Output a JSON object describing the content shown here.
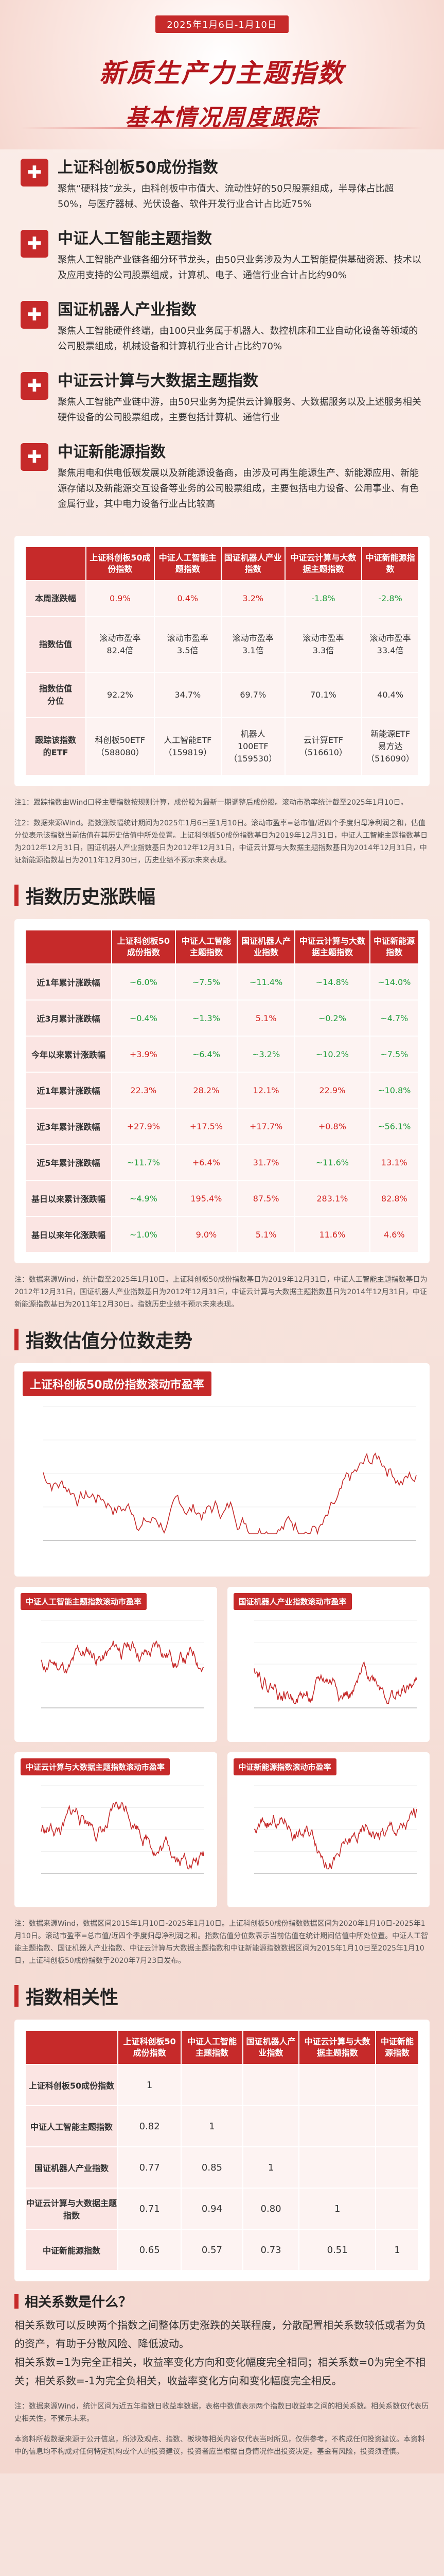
{
  "header": {
    "date": "2025年1月6日-1月10日",
    "title": "新质生产力主题指数",
    "subtitle": "基本情况周度跟踪"
  },
  "intro": [
    {
      "icon": "✚",
      "title": "上证科创板50成份指数",
      "desc": "聚焦“硬科技”龙头，由科创板中市值大、流动性好的50只股票组成，半导体占比超50%，与医疗器械、光伏设备、软件开发行业合计占比近75%"
    },
    {
      "icon": "✚",
      "title": "中证人工智能主题指数",
      "desc": "聚焦人工智能产业链各细分环节龙头，由50只业务涉及为人工智能提供基础资源、技术以及应用支持的公司股票组成，计算机、电子、通信行业合计占比约90%"
    },
    {
      "icon": "✚",
      "title": "国证机器人产业指数",
      "desc": "聚焦人工智能硬件终端，由100只业务属于机器人、数控机床和工业自动化设备等领域的公司股票组成，机械设备和计算机行业合计占比约70%"
    },
    {
      "icon": "✚",
      "title": "中证云计算与大数据主题指数",
      "desc": "聚焦人工智能产业链中游，由50只业务为提供云计算服务、大数据服务以及上述服务相关硬件设备的公司股票组成，主要包括计算机、通信行业"
    },
    {
      "icon": "✚",
      "title": "中证新能源指数",
      "desc": "聚焦用电和供电低碳发展以及新能源设备商，由涉及可再生能源生产、新能源应用、新能源存储以及新能源交互设备等业务的公司股票组成，主要包括电力设备、公用事业、有色金属行业，其中电力设备行业占比较高"
    }
  ],
  "summary": {
    "headers": [
      "",
      "上证科创板50成份指数",
      "中证人工智能主题指数",
      "国证机器人产业指数",
      "中证云计算与大数据主题指数",
      "中证新能源指数"
    ],
    "rows": [
      {
        "label": "本周涨跌幅",
        "cells": [
          "0.9%",
          "0.4%",
          "3.2%",
          "-1.8%",
          "-2.8%"
        ],
        "colors": [
          "red",
          "red",
          "red",
          "green",
          "green"
        ]
      },
      {
        "label": "指数估值",
        "cells": [
          "滚动市盈率\n82.4倍",
          "滚动市盈率\n3.5倍",
          "滚动市盈率\n3.1倍",
          "滚动市盈率\n3.3倍",
          "滚动市盈率\n33.4倍"
        ],
        "colors": [
          "",
          "",
          "",
          "",
          ""
        ]
      },
      {
        "label": "指数估值\n分位",
        "cells": [
          "92.2%",
          "34.7%",
          "69.7%",
          "70.1%",
          "40.4%"
        ],
        "colors": [
          "",
          "",
          "",
          "",
          ""
        ]
      },
      {
        "label": "跟踪该指数\n的ETF",
        "cells": [
          "科创板50ETF\n（588080）",
          "人工智能ETF\n（159819）",
          "机器人\n100ETF\n（159530）",
          "云计算ETF\n（516610）",
          "新能源ETF\n易方达\n（516090）"
        ],
        "colors": [
          "",
          "",
          "",
          "",
          ""
        ]
      }
    ]
  },
  "note1": "注1：跟踪指数由Wind口径主要指数按规则计算，成份股为最新一期调整后成份股。滚动市盈率统计截至2025年1月10日。",
  "note2": "注2：数据来源Wind。指数涨跌幅统计期间为2025年1月6日至1月10日。滚动市盈率=总市值/近四个季度归母净利润之和，估值分位表示该指数当前估值在其历史估值中所处位置。上证科创板50成份指数基日为2019年12月31日，中证人工智能主题指数基日为2012年12月31日，国证机器人产业指数基日为2012年12月31日，中证云计算与大数据主题指数基日为2014年12月31日，中证新能源指数基日为2011年12月30日，历史业绩不预示未来表现。",
  "history_section": {
    "title": "指数历史涨跌幅"
  },
  "history": {
    "headers": [
      "",
      "上证科创板50成份指数",
      "中证人工智能主题指数",
      "国证机器人产业指数",
      "中证云计算与大数据主题指数",
      "中证新能源指数"
    ],
    "rows": [
      {
        "label": "近1年累计涨跌幅",
        "cells": [
          "~6.0%",
          "~7.5%",
          "~11.4%",
          "~14.8%",
          "~14.0%"
        ]
      },
      {
        "label": "近3月累计涨跌幅",
        "cells": [
          "~0.4%",
          "~1.3%",
          "5.1%",
          "~0.2%",
          "~4.7%"
        ]
      },
      {
        "label": "今年以来累计涨跌幅",
        "cells": [
          "+3.9%",
          "~6.4%",
          "~3.2%",
          "~10.2%",
          "~7.5%"
        ]
      },
      {
        "label": "近1年累计涨跌幅",
        "cells": [
          "22.3%",
          "28.2%",
          "12.1%",
          "22.9%",
          "~10.8%"
        ]
      },
      {
        "label": "近3年累计涨跌幅",
        "cells": [
          "+27.9%",
          "+17.5%",
          "+17.7%",
          "+0.8%",
          "~56.1%"
        ]
      },
      {
        "label": "近5年累计涨跌幅",
        "cells": [
          "~11.7%",
          "+6.4%",
          "31.7%",
          "~11.6%",
          "13.1%"
        ]
      },
      {
        "label": "基日以来累计涨跌幅",
        "cells": [
          "~4.9%",
          "195.4%",
          "87.5%",
          "283.1%",
          "82.8%"
        ]
      },
      {
        "label": "基日以来年化涨跌幅",
        "cells": [
          "~1.0%",
          "9.0%",
          "5.1%",
          "11.6%",
          "4.6%"
        ]
      }
    ]
  },
  "note3": "注：数据来源Wind，统计截至2025年1月10日。上证科创板50成份指数基日为2019年12月31日，中证人工智能主题指数基日为2012年12月31日，国证机器人产业指数基日为2012年12月31日，中证云计算与大数据主题指数基日为2014年12月31日，中证新能源指数基日为2011年12月30日。指数历史业绩不预示未来表现。",
  "valuation_section": {
    "title": "指数估值分位数走势"
  },
  "chart_big": {
    "title": "上证科创板50成份指数滚动市盈率"
  },
  "charts_small": [
    {
      "title": "中证人工智能主题指数滚动市盈率"
    },
    {
      "title": "国证机器人产业指数滚动市盈率"
    },
    {
      "title": "中证云计算与大数据主题指数滚动市盈率"
    },
    {
      "title": "中证新能源指数滚动市盈率"
    }
  ],
  "note4": "注：数据来源Wind，数据区间2015年1月10日-2025年1月10日。上证科创板50成份指数数据区间为2020年1月10日-2025年1月10日。滚动市盈率=总市值/近四个季度归母净利润之和。指数估值分位数表示当前估值在统计期间估值中所处位置。中证人工智能主题指数、国证机器人产业指数、中证云计算与大数据主题指数和中证新能源指数数据区间为2015年1月10日至2025年1月10日，上证科创板50成份指数于2020年7月23日发布。",
  "corr_section": {
    "title": "指数相关性"
  },
  "correlation": {
    "headers": [
      "",
      "上证科创板50成份指数",
      "中证人工智能主题指数",
      "国证机器人产业指数",
      "中证云计算与大数据主题指数",
      "中证新能源指数"
    ],
    "rows": [
      {
        "label": "上证科创板50成份指数",
        "cells": [
          "1",
          "",
          "",
          "",
          ""
        ]
      },
      {
        "label": "中证人工智能主题指数",
        "cells": [
          "0.82",
          "1",
          "",
          "",
          ""
        ]
      },
      {
        "label": "国证机器人产业指数",
        "cells": [
          "0.77",
          "0.85",
          "1",
          "",
          ""
        ]
      },
      {
        "label": "中证云计算与大数据主题指数",
        "cells": [
          "0.71",
          "0.94",
          "0.80",
          "1",
          ""
        ]
      },
      {
        "label": "中证新能源指数",
        "cells": [
          "0.65",
          "0.57",
          "0.73",
          "0.51",
          "1"
        ]
      }
    ]
  },
  "explain": {
    "title": "相关系数是什么？",
    "p1": "相关系数可以反映两个指数之间整体历史涨跌的关联程度，分散配置相关系数较低或者为负的资产，有助于分散风险、降低波动。",
    "p2": "相关系数=1为完全正相关，收益率变化方向和变化幅度完全相同；相关系数=0为完全不相关；相关系数=-1为完全负相关，收益率变化方向和变化幅度完全相反。"
  },
  "note5": "注：数据来源Wind，统计区间为近五年指数日收益率数据，表格中数值表示两个指数日收益率之间的相关系数。相关系数仅代表历史相关性，不预示未来。",
  "footer": "本资料所载数据来源于公开信息，所涉及观点、指数、板块等相关内容仅代表当时所见，仅供参考，不构成任何投资建议。本资料中的信息均不构成对任何特定机构或个人的投资建议，投资者应当根据自身情况作出投资决定。基金有风险，投资须谨慎。"
}
